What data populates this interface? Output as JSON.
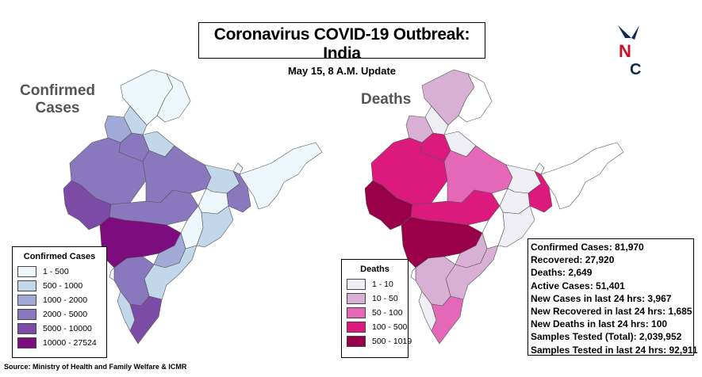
{
  "title": "Coronavirus COVID-19 Outbreak: India",
  "subtitle": "May 15, 8 A.M. Update",
  "logo_text": "NC",
  "maps": {
    "confirmed": {
      "label": "Confirmed Cases"
    },
    "deaths": {
      "label": "Deaths"
    }
  },
  "legend_confirmed": {
    "title": "Confirmed Cases",
    "items": [
      {
        "label": "1 - 500",
        "color": "#eef7fb"
      },
      {
        "label": "500 - 1000",
        "color": "#c2d7ea"
      },
      {
        "label": "1000 - 2000",
        "color": "#a1a9d6"
      },
      {
        "label": "2000 - 5000",
        "color": "#8a78bf"
      },
      {
        "label": "5000 - 10000",
        "color": "#7c4ba6"
      },
      {
        "label": "10000 - 27524",
        "color": "#7d0c7e"
      }
    ]
  },
  "legend_deaths": {
    "title": "Deaths",
    "items": [
      {
        "label": "1 - 10",
        "color": "#f0eef5"
      },
      {
        "label": "10 - 50",
        "color": "#d8b0d6"
      },
      {
        "label": "50 - 100",
        "color": "#e467b8"
      },
      {
        "label": "100 - 500",
        "color": "#dc1a7d"
      },
      {
        "label": "500 - 1019",
        "color": "#990049"
      }
    ]
  },
  "stats": [
    "Confirmed Cases: 81,970",
    "Recovered: 27,920",
    "Deaths: 2,649",
    "Active Cases:  51,401",
    "New Cases in last 24 hrs: 3,967",
    "New Recovered in last 24 hrs: 1,685",
    "New Deaths in last 24 hrs: 100",
    "Samples Tested (Total): 2,039,952",
    "Samples Tested in last 24 hrs: 92,911"
  ],
  "source": "Source: Ministry of Health and Family Welfare & ICMR"
}
